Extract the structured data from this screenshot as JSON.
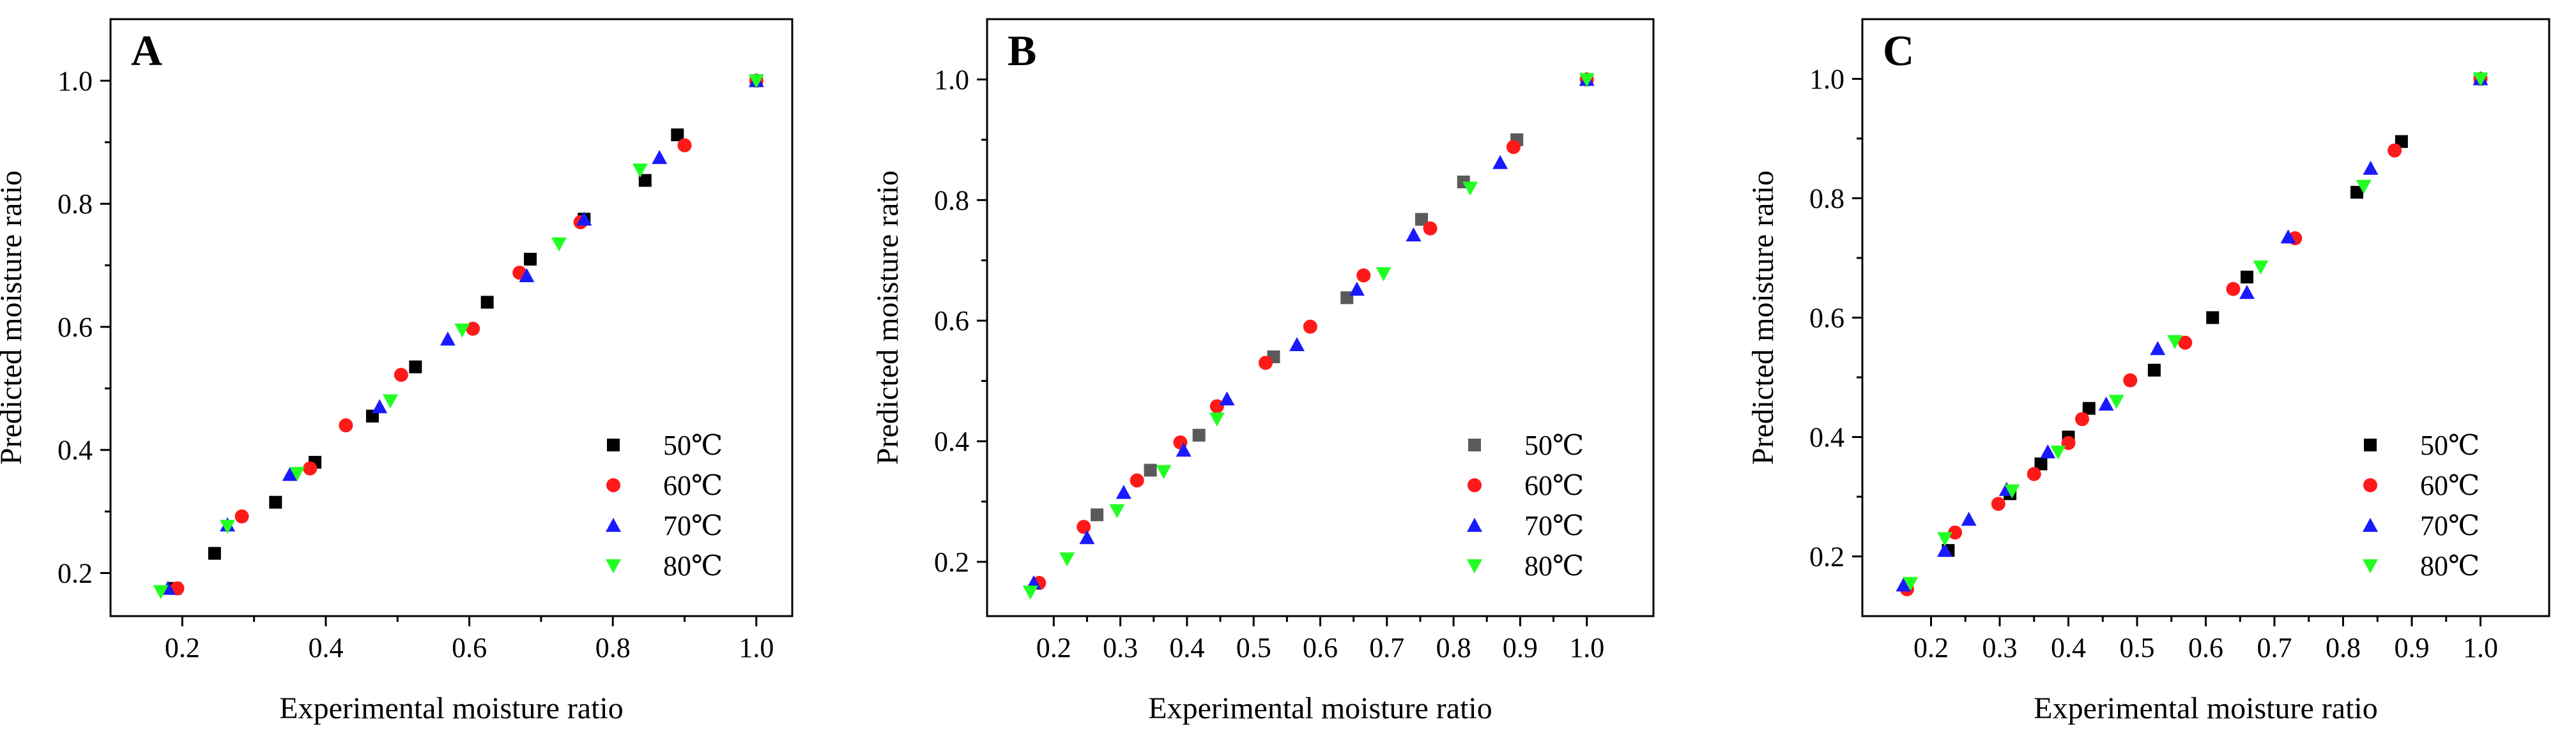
{
  "colors": {
    "s50": "#000000",
    "s50_alt": "#5a5a5a",
    "s60": "#ff1a1a",
    "s70": "#1a1aff",
    "s80": "#22ff22"
  },
  "chart_data": [
    {
      "type": "scatter",
      "panel_label": "A",
      "title": "",
      "xlabel": "Experimental moisture ratio",
      "ylabel": "Predicted moisture ratio",
      "xlim": [
        0.1,
        1.05
      ],
      "ylim": [
        0.13,
        1.1
      ],
      "xticks": [
        0.2,
        0.4,
        0.6,
        0.8,
        1.0
      ],
      "yticks": [
        0.2,
        0.4,
        0.6,
        0.8,
        1.0
      ],
      "xtick_labels": [
        "0.2",
        "0.4",
        "0.6",
        "0.8",
        "1.0"
      ],
      "ytick_labels": [
        "0.2",
        "0.4",
        "0.6",
        "0.8",
        "1.0"
      ],
      "legend_position": "lower-right",
      "series": [
        {
          "name": "50℃",
          "marker": "square",
          "color_key": "s50",
          "points": [
            [
              0.19,
              0.175
            ],
            [
              0.245,
              0.232
            ],
            [
              0.33,
              0.315
            ],
            [
              0.385,
              0.38
            ],
            [
              0.465,
              0.455
            ],
            [
              0.525,
              0.535
            ],
            [
              0.625,
              0.64
            ],
            [
              0.685,
              0.71
            ],
            [
              0.76,
              0.775
            ],
            [
              0.845,
              0.838
            ],
            [
              0.89,
              0.912
            ],
            [
              1.0,
              1.0
            ]
          ]
        },
        {
          "name": "60℃",
          "marker": "circle",
          "color_key": "s60",
          "points": [
            [
              0.193,
              0.175
            ],
            [
              0.283,
              0.292
            ],
            [
              0.378,
              0.37
            ],
            [
              0.428,
              0.44
            ],
            [
              0.505,
              0.522
            ],
            [
              0.605,
              0.597
            ],
            [
              0.67,
              0.688
            ],
            [
              0.755,
              0.77
            ],
            [
              0.9,
              0.895
            ],
            [
              1.0,
              1.0
            ]
          ]
        },
        {
          "name": "70℃",
          "marker": "triangle-up",
          "color_key": "s70",
          "points": [
            [
              0.18,
              0.175
            ],
            [
              0.263,
              0.278
            ],
            [
              0.35,
              0.36
            ],
            [
              0.475,
              0.47
            ],
            [
              0.57,
              0.58
            ],
            [
              0.68,
              0.683
            ],
            [
              0.76,
              0.775
            ],
            [
              0.865,
              0.875
            ],
            [
              1.0,
              1.0
            ]
          ]
        },
        {
          "name": "80℃",
          "marker": "triangle-down",
          "color_key": "s80",
          "points": [
            [
              0.17,
              0.17
            ],
            [
              0.263,
              0.276
            ],
            [
              0.36,
              0.362
            ],
            [
              0.49,
              0.48
            ],
            [
              0.59,
              0.595
            ],
            [
              0.725,
              0.735
            ],
            [
              0.838,
              0.855
            ],
            [
              1.0,
              1.0
            ]
          ]
        }
      ]
    },
    {
      "type": "scatter",
      "panel_label": "B",
      "title": "",
      "xlabel": "Experimental moisture ratio",
      "ylabel": "Predicted moisture ratio",
      "xlim": [
        0.1,
        1.1
      ],
      "ylim": [
        0.11,
        1.1
      ],
      "xticks": [
        0.2,
        0.3,
        0.4,
        0.5,
        0.6,
        0.7,
        0.8,
        0.9,
        1.0
      ],
      "yticks": [
        0.2,
        0.4,
        0.6,
        0.8,
        1.0
      ],
      "xtick_labels": [
        "0.2",
        "0.3",
        "0.4",
        "0.5",
        "0.6",
        "0.7",
        "0.8",
        "0.9",
        "1.0"
      ],
      "ytick_labels": [
        "0.2",
        "0.4",
        "0.6",
        "0.8",
        "1.0"
      ],
      "legend_position": "lower-right",
      "series": [
        {
          "name": "50℃",
          "marker": "square",
          "color_key": "s50_alt",
          "points": [
            [
              0.265,
              0.278
            ],
            [
              0.345,
              0.352
            ],
            [
              0.418,
              0.41
            ],
            [
              0.53,
              0.54
            ],
            [
              0.64,
              0.638
            ],
            [
              0.752,
              0.768
            ],
            [
              0.815,
              0.83
            ],
            [
              0.895,
              0.9
            ],
            [
              1.0,
              1.0
            ]
          ]
        },
        {
          "name": "60℃",
          "marker": "circle",
          "color_key": "s60",
          "points": [
            [
              0.178,
              0.165
            ],
            [
              0.245,
              0.258
            ],
            [
              0.325,
              0.335
            ],
            [
              0.39,
              0.398
            ],
            [
              0.445,
              0.458
            ],
            [
              0.518,
              0.53
            ],
            [
              0.585,
              0.59
            ],
            [
              0.665,
              0.675
            ],
            [
              0.765,
              0.753
            ],
            [
              0.89,
              0.888
            ],
            [
              1.0,
              1.0
            ]
          ]
        },
        {
          "name": "70℃",
          "marker": "triangle-up",
          "color_key": "s70",
          "points": [
            [
              0.17,
              0.165
            ],
            [
              0.25,
              0.24
            ],
            [
              0.305,
              0.315
            ],
            [
              0.395,
              0.385
            ],
            [
              0.46,
              0.47
            ],
            [
              0.565,
              0.56
            ],
            [
              0.655,
              0.652
            ],
            [
              0.74,
              0.742
            ],
            [
              0.87,
              0.862
            ],
            [
              1.0,
              1.0
            ]
          ]
        },
        {
          "name": "80℃",
          "marker": "triangle-down",
          "color_key": "s80",
          "points": [
            [
              0.165,
              0.15
            ],
            [
              0.22,
              0.205
            ],
            [
              0.295,
              0.285
            ],
            [
              0.365,
              0.35
            ],
            [
              0.445,
              0.437
            ],
            [
              0.695,
              0.678
            ],
            [
              0.825,
              0.82
            ],
            [
              1.0,
              1.0
            ]
          ]
        }
      ]
    },
    {
      "type": "scatter",
      "panel_label": "C",
      "title": "",
      "xlabel": "Experimental moisture ratio",
      "ylabel": "Predicted moisture ratio",
      "xlim": [
        0.1,
        1.1
      ],
      "ylim": [
        0.1,
        1.1
      ],
      "xticks": [
        0.2,
        0.3,
        0.4,
        0.5,
        0.6,
        0.7,
        0.8,
        0.9,
        1.0
      ],
      "yticks": [
        0.2,
        0.4,
        0.6,
        0.8,
        1.0
      ],
      "xtick_labels": [
        "0.2",
        "0.3",
        "0.4",
        "0.5",
        "0.6",
        "0.7",
        "0.8",
        "0.9",
        "1.0"
      ],
      "ytick_labels": [
        "0.2",
        "0.4",
        "0.6",
        "0.8",
        "1.0"
      ],
      "legend_position": "lower-right",
      "series": [
        {
          "name": "50℃",
          "marker": "square",
          "color_key": "s50",
          "points": [
            [
              0.225,
              0.21
            ],
            [
              0.315,
              0.305
            ],
            [
              0.36,
              0.355
            ],
            [
              0.4,
              0.4
            ],
            [
              0.43,
              0.448
            ],
            [
              0.525,
              0.512
            ],
            [
              0.61,
              0.6
            ],
            [
              0.66,
              0.668
            ],
            [
              0.82,
              0.81
            ],
            [
              0.885,
              0.895
            ],
            [
              1.0,
              1.0
            ]
          ]
        },
        {
          "name": "60℃",
          "marker": "circle",
          "color_key": "s60",
          "points": [
            [
              0.165,
              0.145
            ],
            [
              0.235,
              0.24
            ],
            [
              0.298,
              0.288
            ],
            [
              0.35,
              0.338
            ],
            [
              0.4,
              0.39
            ],
            [
              0.42,
              0.43
            ],
            [
              0.49,
              0.495
            ],
            [
              0.57,
              0.558
            ],
            [
              0.64,
              0.648
            ],
            [
              0.73,
              0.733
            ],
            [
              0.875,
              0.88
            ],
            [
              1.0,
              1.0
            ]
          ]
        },
        {
          "name": "70℃",
          "marker": "triangle-up",
          "color_key": "s70",
          "points": [
            [
              0.16,
              0.152
            ],
            [
              0.22,
              0.21
            ],
            [
              0.255,
              0.262
            ],
            [
              0.31,
              0.312
            ],
            [
              0.37,
              0.375
            ],
            [
              0.455,
              0.455
            ],
            [
              0.53,
              0.548
            ],
            [
              0.66,
              0.642
            ],
            [
              0.72,
              0.735
            ],
            [
              0.84,
              0.85
            ],
            [
              1.0,
              1.0
            ]
          ]
        },
        {
          "name": "80℃",
          "marker": "triangle-down",
          "color_key": "s80",
          "points": [
            [
              0.17,
              0.155
            ],
            [
              0.22,
              0.23
            ],
            [
              0.318,
              0.31
            ],
            [
              0.385,
              0.375
            ],
            [
              0.47,
              0.46
            ],
            [
              0.555,
              0.56
            ],
            [
              0.68,
              0.685
            ],
            [
              0.83,
              0.82
            ],
            [
              1.0,
              1.0
            ]
          ]
        }
      ]
    }
  ]
}
